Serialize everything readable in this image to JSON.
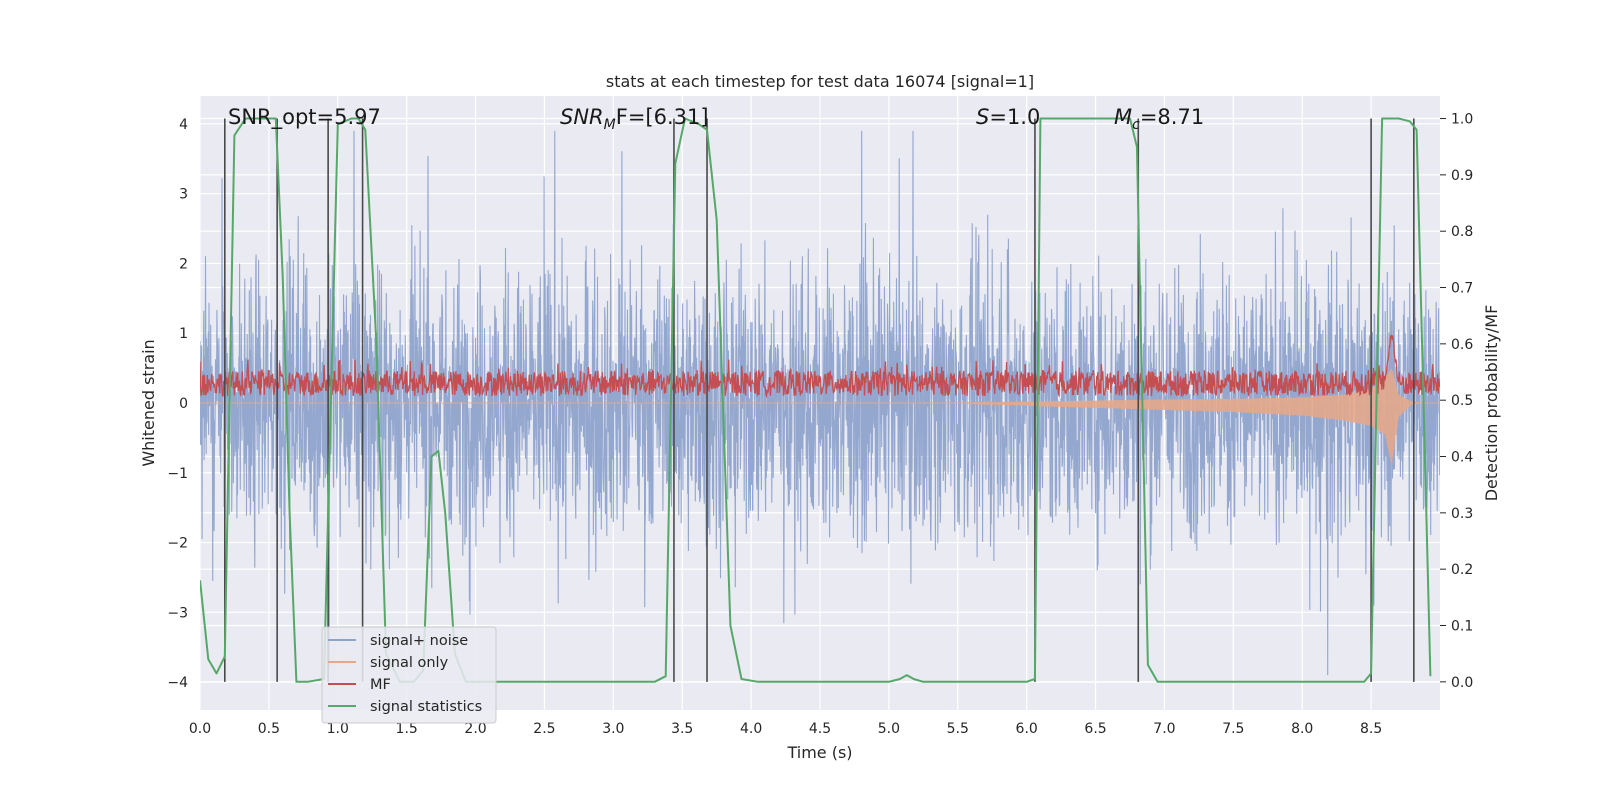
{
  "chart_data": {
    "type": "line",
    "title": "stats at each timestep for test data 16074 [signal=1]",
    "xlabel": "Time (s)",
    "ylabel_left": "Whitened strain",
    "ylabel_right": "Detection probability/MF",
    "xlim": [
      0,
      9.0
    ],
    "ylim_left": [
      -4.4,
      4.4
    ],
    "ylim_right": [
      -0.05,
      1.04
    ],
    "x_ticks": [
      "0.0",
      "0.5",
      "1.0",
      "1.5",
      "2.0",
      "2.5",
      "3.0",
      "3.5",
      "4.0",
      "4.5",
      "5.0",
      "5.5",
      "6.0",
      "6.5",
      "7.0",
      "7.5",
      "8.0",
      "8.5"
    ],
    "y_ticks_left": [
      "-4",
      "-3",
      "-2",
      "-1",
      "0",
      "1",
      "2",
      "3",
      "4"
    ],
    "y_ticks_right": [
      "0.0",
      "0.1",
      "0.2",
      "0.3",
      "0.4",
      "0.5",
      "0.6",
      "0.7",
      "0.8",
      "0.9",
      "1.0"
    ],
    "grid": true,
    "legend_position": "lower-left",
    "annotations": {
      "snr_opt": "SNR_opt=5.97",
      "snr_mf_main": "SNR",
      "snr_mf_sub": "M",
      "snr_mf_rest": "F=[6.31]",
      "s_main": "S",
      "s_rest": "=1.0",
      "mc_main": "M",
      "mc_sub": "c",
      "mc_rest": "=8.71"
    },
    "vertical_lines_x": [
      0.18,
      0.56,
      0.93,
      1.18,
      3.44,
      3.68,
      6.06,
      6.81,
      8.5,
      8.81
    ],
    "series": [
      {
        "name": "signal+ noise",
        "color": "#8ea3cc",
        "noise_amplitude_envelope": {
          "x": [
            0,
            9.0
          ],
          "y_range": [
            -3.9,
            3.9
          ]
        }
      },
      {
        "name": "signal only",
        "color": "#e6a88a",
        "envelope": {
          "x": [
            0,
            5.5,
            6.0,
            7.0,
            7.5,
            8.0,
            8.3,
            8.5,
            8.6,
            8.65,
            8.7,
            8.8,
            8.9
          ],
          "lower": [
            0,
            0,
            -0.04,
            -0.1,
            -0.13,
            -0.18,
            -0.25,
            -0.33,
            -0.45,
            -0.9,
            -0.2,
            -0.01,
            0
          ],
          "upper": [
            0,
            0,
            0.02,
            0.05,
            0.06,
            0.08,
            0.12,
            0.2,
            0.35,
            0.5,
            0.12,
            0.01,
            0
          ]
        }
      },
      {
        "name": "MF",
        "color": "#c44e52",
        "baseline": 0.53,
        "spike": {
          "x": 8.65,
          "y": 0.62
        }
      },
      {
        "name": "signal statistics",
        "color": "#55a868",
        "x": [
          0.0,
          0.06,
          0.12,
          0.18,
          0.25,
          0.33,
          0.45,
          0.55,
          0.6,
          0.65,
          0.7,
          0.78,
          0.9,
          0.96,
          1.0,
          1.1,
          1.15,
          1.2,
          1.28,
          1.35,
          1.45,
          1.55,
          1.62,
          1.68,
          1.73,
          1.78,
          1.85,
          1.93,
          2.05,
          2.5,
          3.0,
          3.3,
          3.38,
          3.45,
          3.52,
          3.62,
          3.68,
          3.75,
          3.85,
          3.93,
          4.05,
          4.5,
          5.0,
          5.08,
          5.13,
          5.18,
          5.25,
          6.0,
          6.06,
          6.1,
          6.2,
          6.5,
          6.75,
          6.8,
          6.88,
          6.95,
          7.5,
          8.0,
          8.45,
          8.5,
          8.58,
          8.7,
          8.78,
          8.83,
          8.88,
          8.93
        ],
        "y": [
          0.18,
          0.04,
          0.015,
          0.045,
          0.97,
          1.0,
          1.0,
          1.0,
          0.72,
          0.3,
          0.0,
          0.0,
          0.005,
          0.6,
          0.99,
          1.0,
          1.0,
          0.98,
          0.6,
          0.05,
          0.0,
          0.0,
          0.02,
          0.4,
          0.41,
          0.3,
          0.05,
          0.0,
          0.0,
          0.0,
          0.0,
          0.0,
          0.01,
          0.92,
          1.0,
          0.99,
          0.98,
          0.82,
          0.1,
          0.005,
          0.0,
          0.0,
          0.0,
          0.005,
          0.012,
          0.005,
          0.0,
          0.0,
          0.005,
          1.0,
          1.0,
          1.0,
          1.0,
          0.95,
          0.03,
          0.0,
          0.0,
          0.0,
          0.0,
          0.015,
          1.0,
          1.0,
          0.995,
          0.98,
          0.5,
          0.01
        ]
      }
    ]
  }
}
